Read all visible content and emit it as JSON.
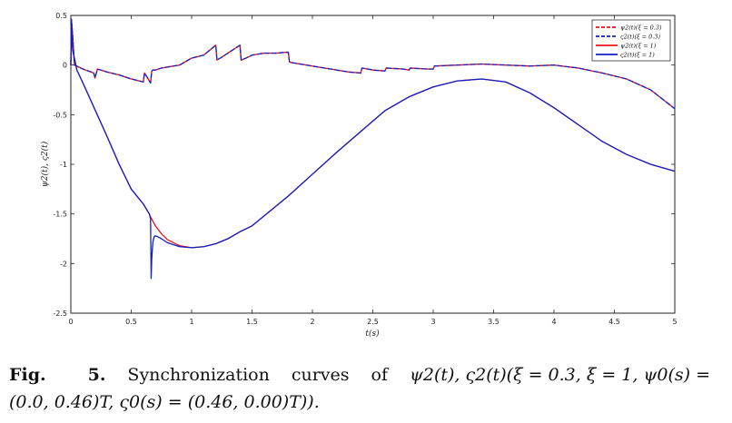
{
  "chart_data": {
    "type": "line",
    "title": "",
    "xlabel": "t(s)",
    "ylabel": "ψ2(t), ς2(t)",
    "xlim": [
      0,
      5
    ],
    "ylim": [
      -2.5,
      0.5
    ],
    "xticks": [
      "0",
      "0.5",
      "1",
      "1.5",
      "2",
      "2.5",
      "3",
      "3.5",
      "4",
      "4.5",
      "5"
    ],
    "yticks": [
      "0.5",
      "0",
      "-0.5",
      "-1",
      "-1.5",
      "-2",
      "-2.5"
    ],
    "grid": false,
    "legend_position": "top-right",
    "legend_labels": [
      "ψ2(t)(ξ = 0.3)",
      "ς2(t)(ξ = 0.3)",
      "ψ2(t)(ξ = 1)",
      "ς2(t)(ξ = 1)"
    ],
    "colors": {
      "red": "#e8141c",
      "blue": "#1020c8"
    },
    "series": [
      {
        "name": "ψ2(t)(ξ = 0.3)",
        "color": "#e8141c",
        "dash": true,
        "x": [
          0,
          0.005,
          0.015,
          0.03,
          0.1,
          0.19,
          0.2,
          0.22,
          0.3,
          0.4,
          0.5,
          0.6,
          0.61,
          0.62,
          0.66,
          0.67,
          0.68,
          0.7,
          0.75,
          0.8,
          0.9,
          1.0,
          1.1,
          1.2,
          1.21,
          1.25,
          1.3,
          1.4,
          1.41,
          1.45,
          1.5,
          1.6,
          1.7,
          1.8,
          1.81,
          1.85,
          2.0,
          2.2,
          2.3,
          2.4,
          2.41,
          2.5,
          2.6,
          2.61,
          2.75,
          2.8,
          2.81,
          2.95,
          3.0,
          3.01,
          3.2,
          3.4,
          3.6,
          3.8,
          4.0,
          4.2,
          4.4,
          4.6,
          4.8,
          5.0
        ],
        "y": [
          0.0,
          0.46,
          0.3,
          0.0,
          -0.04,
          -0.08,
          -0.13,
          -0.04,
          -0.07,
          -0.1,
          -0.14,
          -0.17,
          -0.08,
          -0.1,
          -0.18,
          -0.06,
          -0.05,
          -0.05,
          -0.03,
          -0.02,
          0.0,
          0.07,
          0.1,
          0.2,
          0.05,
          0.08,
          0.12,
          0.2,
          0.05,
          0.07,
          0.1,
          0.12,
          0.12,
          0.13,
          0.03,
          0.02,
          -0.01,
          -0.05,
          -0.07,
          -0.08,
          -0.03,
          -0.05,
          -0.06,
          -0.03,
          -0.04,
          -0.05,
          -0.03,
          -0.04,
          -0.04,
          -0.01,
          0.0,
          0.01,
          0.0,
          -0.01,
          0.0,
          -0.03,
          -0.08,
          -0.14,
          -0.25,
          -0.44
        ]
      },
      {
        "name": "ς2(t)(ξ = 0.3)",
        "color": "#1020c8",
        "dash": true,
        "x": [
          0,
          0.005,
          0.015,
          0.03,
          0.1,
          0.19,
          0.2,
          0.22,
          0.3,
          0.4,
          0.5,
          0.6,
          0.61,
          0.62,
          0.66,
          0.67,
          0.68,
          0.7,
          0.75,
          0.8,
          0.9,
          1.0,
          1.1,
          1.2,
          1.21,
          1.25,
          1.3,
          1.4,
          1.41,
          1.45,
          1.5,
          1.6,
          1.7,
          1.8,
          1.81,
          1.85,
          2.0,
          2.2,
          2.3,
          2.4,
          2.41,
          2.5,
          2.6,
          2.61,
          2.75,
          2.8,
          2.81,
          2.95,
          3.0,
          3.01,
          3.2,
          3.4,
          3.6,
          3.8,
          4.0,
          4.2,
          4.4,
          4.6,
          4.8,
          5.0
        ],
        "y": [
          0.0,
          0.46,
          0.3,
          0.0,
          -0.04,
          -0.08,
          -0.13,
          -0.04,
          -0.07,
          -0.1,
          -0.14,
          -0.17,
          -0.08,
          -0.1,
          -0.18,
          -0.06,
          -0.05,
          -0.05,
          -0.03,
          -0.02,
          0.0,
          0.07,
          0.1,
          0.2,
          0.05,
          0.08,
          0.12,
          0.2,
          0.05,
          0.07,
          0.1,
          0.12,
          0.12,
          0.13,
          0.03,
          0.02,
          -0.01,
          -0.05,
          -0.07,
          -0.08,
          -0.03,
          -0.05,
          -0.06,
          -0.03,
          -0.04,
          -0.05,
          -0.03,
          -0.04,
          -0.04,
          -0.01,
          0.0,
          0.01,
          0.0,
          -0.01,
          0.0,
          -0.03,
          -0.08,
          -0.14,
          -0.25,
          -0.44
        ]
      },
      {
        "name": "ψ2(t)(ξ = 1)",
        "color": "#e8141c",
        "dash": false,
        "x": [
          0,
          0.005,
          0.015,
          0.05,
          0.1,
          0.2,
          0.3,
          0.4,
          0.5,
          0.6,
          0.65,
          0.66,
          0.7,
          0.75,
          0.8,
          0.9,
          1.0,
          1.1,
          1.2,
          1.3,
          1.4,
          1.5,
          1.6,
          1.8,
          2.0,
          2.2,
          2.4,
          2.6,
          2.8,
          3.0,
          3.2,
          3.4,
          3.6,
          3.8,
          4.0,
          4.2,
          4.4,
          4.6,
          4.8,
          5.0
        ],
        "y": [
          0.0,
          0.46,
          0.15,
          -0.05,
          -0.18,
          -0.45,
          -0.72,
          -1.0,
          -1.25,
          -1.4,
          -1.5,
          -1.53,
          -1.62,
          -1.7,
          -1.76,
          -1.82,
          -1.84,
          -1.83,
          -1.8,
          -1.75,
          -1.68,
          -1.62,
          -1.52,
          -1.32,
          -1.1,
          -0.88,
          -0.67,
          -0.46,
          -0.32,
          -0.22,
          -0.16,
          -0.14,
          -0.17,
          -0.28,
          -0.43,
          -0.6,
          -0.77,
          -0.9,
          -1.0,
          -1.07
        ]
      },
      {
        "name": "ς2(t)(ξ = 1)",
        "color": "#1020c8",
        "dash": false,
        "x": [
          0,
          0.005,
          0.015,
          0.05,
          0.1,
          0.2,
          0.3,
          0.4,
          0.5,
          0.6,
          0.65,
          0.66,
          0.665,
          0.67,
          0.675,
          0.68,
          0.69,
          0.7,
          0.72,
          0.75,
          0.8,
          0.9,
          1.0,
          1.1,
          1.2,
          1.3,
          1.4,
          1.5,
          1.6,
          1.8,
          2.0,
          2.2,
          2.4,
          2.6,
          2.8,
          3.0,
          3.2,
          3.4,
          3.6,
          3.8,
          4.0,
          4.2,
          4.4,
          4.6,
          4.8,
          5.0
        ],
        "y": [
          0.0,
          0.46,
          0.15,
          -0.05,
          -0.18,
          -0.45,
          -0.72,
          -1.0,
          -1.25,
          -1.4,
          -1.5,
          -1.55,
          -2.15,
          -1.95,
          -1.85,
          -1.78,
          -1.73,
          -1.72,
          -1.73,
          -1.75,
          -1.79,
          -1.83,
          -1.84,
          -1.83,
          -1.8,
          -1.75,
          -1.68,
          -1.62,
          -1.52,
          -1.32,
          -1.1,
          -0.88,
          -0.67,
          -0.46,
          -0.32,
          -0.22,
          -0.16,
          -0.14,
          -0.17,
          -0.28,
          -0.43,
          -0.6,
          -0.77,
          -0.9,
          -1.0,
          -1.07
        ]
      }
    ]
  },
  "caption": {
    "label": "Fig.",
    "number": "5.",
    "word1": "Synchronization",
    "word2": "curves",
    "word3": "of",
    "math_line1": "ψ2(t), ς2(t)(ξ = 0.3, ξ = 1, ψ0(s) =",
    "math_line2": "(0.0, 0.46)T, ς0(s) = (0.46, 0.00)T))."
  }
}
